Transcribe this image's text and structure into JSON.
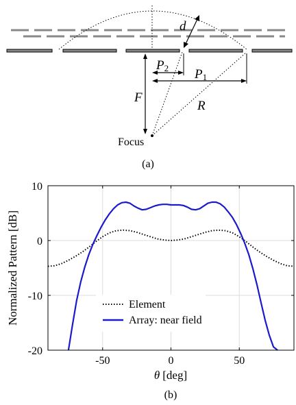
{
  "figure_a": {
    "caption": "(a)",
    "labels": {
      "d": "d",
      "p2": "P",
      "p2_sub": "2",
      "p1": "P",
      "p1_sub": "1",
      "f": "F",
      "r": "R",
      "focus": "Focus"
    }
  },
  "figure_b": {
    "caption": "(b)"
  },
  "chart_data": {
    "type": "line",
    "title": "",
    "xlabel_symbol": "θ",
    "xlabel_unit": "[deg]",
    "ylabel": "Normalized Pattern [dB]",
    "xlim": [
      -90,
      90
    ],
    "ylim": [
      -20,
      10
    ],
    "xticks": [
      -50,
      0,
      50
    ],
    "yticks": [
      10,
      0,
      -10,
      -20
    ],
    "xtick_labels": [
      "-50",
      "0",
      "50"
    ],
    "ytick_labels": [
      "10",
      "0",
      "-10",
      "-20"
    ],
    "grid": true,
    "legend_position": "bottom-center",
    "series": [
      {
        "name": "Element",
        "style": "dotted",
        "color": "#000000",
        "x": [
          -90,
          -85,
          -80,
          -75,
          -70,
          -65,
          -60,
          -55,
          -50,
          -45,
          -40,
          -35,
          -30,
          -25,
          -20,
          -15,
          -10,
          -5,
          0,
          5,
          10,
          15,
          20,
          25,
          30,
          35,
          40,
          45,
          50,
          55,
          60,
          65,
          70,
          75,
          80,
          85,
          90
        ],
        "y": [
          -4.7,
          -4.6,
          -4.2,
          -3.6,
          -2.9,
          -2.1,
          -1.2,
          -0.2,
          0.7,
          1.4,
          1.8,
          1.9,
          1.8,
          1.5,
          1.1,
          0.7,
          0.3,
          0.1,
          0.0,
          0.1,
          0.3,
          0.7,
          1.1,
          1.5,
          1.8,
          1.9,
          1.8,
          1.4,
          0.7,
          -0.2,
          -1.2,
          -2.1,
          -2.9,
          -3.6,
          -4.2,
          -4.6,
          -4.7
        ]
      },
      {
        "name": "Array: near field",
        "style": "solid",
        "color": "#1a1acc",
        "x": [
          -75,
          -72,
          -69,
          -66,
          -63,
          -60,
          -57,
          -54,
          -51,
          -48,
          -45,
          -42,
          -39,
          -36,
          -33,
          -30,
          -27,
          -24,
          -21,
          -18,
          -15,
          -12,
          -9,
          -6,
          -3,
          0,
          3,
          6,
          9,
          12,
          15,
          18,
          21,
          24,
          27,
          30,
          33,
          36,
          39,
          42,
          45,
          48,
          51,
          54,
          57,
          60,
          63,
          66,
          69,
          72,
          75,
          78
        ],
        "y": [
          -20,
          -15.3,
          -10.9,
          -7.5,
          -4.8,
          -2.5,
          -0.6,
          1.0,
          2.5,
          3.8,
          4.9,
          5.8,
          6.5,
          6.9,
          7.0,
          6.8,
          6.3,
          5.9,
          5.6,
          5.7,
          6.0,
          6.3,
          6.5,
          6.6,
          6.6,
          6.5,
          6.5,
          6.5,
          6.4,
          6.1,
          5.7,
          5.6,
          5.8,
          6.3,
          6.8,
          7.0,
          7.0,
          6.7,
          6.1,
          5.2,
          4.2,
          2.9,
          1.3,
          -0.5,
          -2.6,
          -5.2,
          -8.1,
          -11.4,
          -14.6,
          -17.3,
          -19.4,
          -20
        ]
      }
    ]
  }
}
